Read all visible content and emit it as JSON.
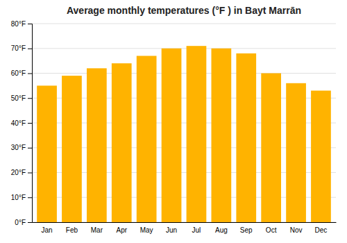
{
  "chart_data": {
    "type": "bar",
    "title": "Average monthly temperatures (°F ) in Bayt Marrān",
    "categories": [
      "Jan",
      "Feb",
      "Mar",
      "Apr",
      "May",
      "Jun",
      "Jul",
      "Aug",
      "Sep",
      "Oct",
      "Nov",
      "Dec"
    ],
    "values": [
      55,
      59,
      62,
      64,
      67,
      70,
      71,
      70,
      68,
      60,
      56,
      53
    ],
    "color": "#FFB300",
    "ylim": [
      0,
      80
    ],
    "yticks": [
      {
        "value": 0,
        "label": "0°F"
      },
      {
        "value": 10,
        "label": "10°F"
      },
      {
        "value": 20,
        "label": "20°F"
      },
      {
        "value": 30,
        "label": "30°F"
      },
      {
        "value": 40,
        "label": "40°F"
      },
      {
        "value": 50,
        "label": "50°F"
      },
      {
        "value": 60,
        "label": "60°F"
      },
      {
        "value": 70,
        "label": "70°F"
      },
      {
        "value": 80,
        "label": "80°F"
      }
    ],
    "grid": true
  }
}
